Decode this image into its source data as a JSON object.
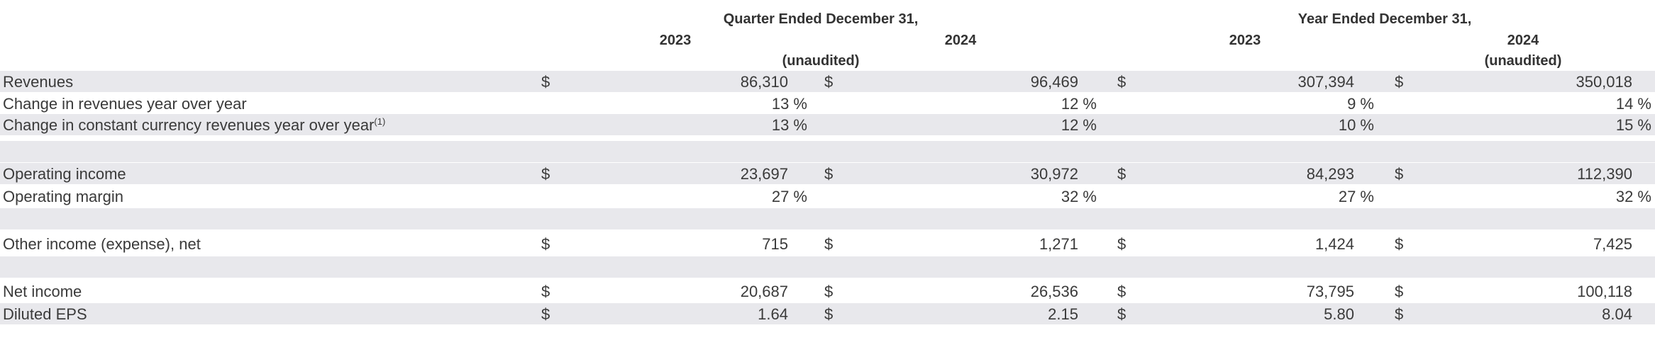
{
  "headers": {
    "quarter_title": "Quarter Ended December 31,",
    "year_title": "Year Ended December 31,",
    "q_2023": "2023",
    "q_2024": "2024",
    "y_2023": "2023",
    "y_2024": "2024",
    "q_unaudited": "(unaudited)",
    "y_unaudited": "(unaudited)"
  },
  "currency_symbol": "$",
  "rows": {
    "revenues": {
      "label": "Revenues",
      "q23": "86,310",
      "q24": "96,469",
      "y23": "307,394",
      "y24": "350,018"
    },
    "rev_change": {
      "label": "Change in revenues year over year",
      "q23": "13 %",
      "q24": "12 %",
      "y23": "9 %",
      "y24": "14 %"
    },
    "cc_change": {
      "label": "Change in constant currency revenues year over year",
      "footnote": "(1)",
      "q23": "13 %",
      "q24": "12 %",
      "y23": "10 %",
      "y24": "15 %"
    },
    "op_income": {
      "label": "Operating income",
      "q23": "23,697",
      "q24": "30,972",
      "y23": "84,293",
      "y24": "112,390"
    },
    "op_margin": {
      "label": "Operating margin",
      "q23": "27 %",
      "q24": "32 %",
      "y23": "27 %",
      "y24": "32 %"
    },
    "other_income": {
      "label": "Other income (expense), net",
      "q23": "715",
      "q24": "1,271",
      "y23": "1,424",
      "y24": "7,425"
    },
    "net_income": {
      "label": "Net income",
      "q23": "20,687",
      "q24": "26,536",
      "y23": "73,795",
      "y24": "100,118"
    },
    "diluted_eps": {
      "label": "Diluted EPS",
      "q23": "1.64",
      "q24": "2.15",
      "y23": "5.80",
      "y24": "8.04"
    }
  }
}
